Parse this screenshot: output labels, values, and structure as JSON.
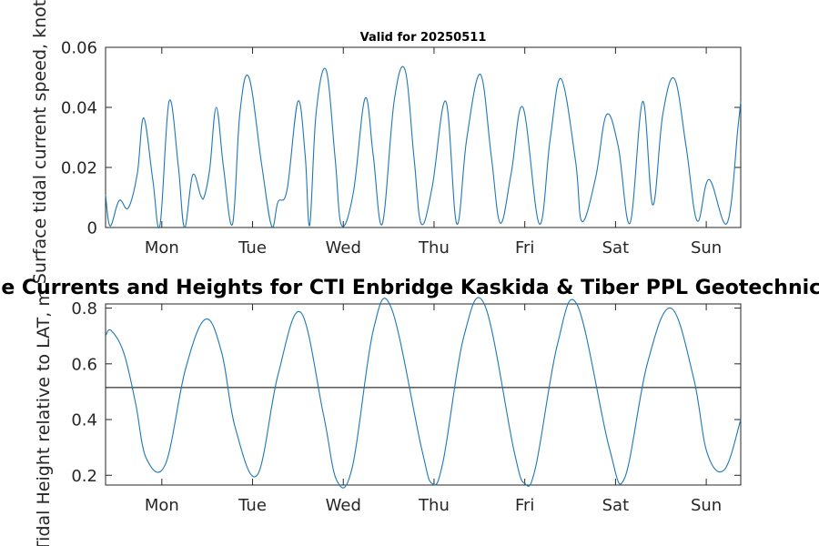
{
  "figure": {
    "top_title": "Valid for 20250511",
    "main_title": "Surface Currents and Heights for CTI Enbridge  Kaskida & Tiber PPL Geotechnical and"
  },
  "chart_data": [
    {
      "type": "line",
      "title": "Valid for 20250511",
      "ylabel": "Surface tidal current speed, knots",
      "xlabel": "",
      "x_unit": "days",
      "xlim": [
        0,
        7
      ],
      "ylim": [
        0,
        0.06
      ],
      "yticks": [
        0,
        0.02,
        0.04,
        0.06
      ],
      "ytick_labels": [
        "0",
        "0.02",
        "0.04",
        "0.06"
      ],
      "xticks": [
        0.62,
        1.62,
        2.62,
        3.62,
        4.62,
        5.62,
        6.62
      ],
      "xtick_labels": [
        "Mon",
        "Tue",
        "Wed",
        "Thu",
        "Fri",
        "Sat",
        "Sun"
      ],
      "grid": false,
      "color": "#1f77b4",
      "series": [
        {
          "x": [
            0,
            0.05,
            0.15,
            0.25,
            0.35,
            0.42,
            0.52,
            0.6,
            0.7,
            0.8,
            0.87,
            0.96,
            1.05,
            1.09,
            1.15,
            1.22,
            1.3,
            1.4,
            1.48,
            1.58,
            1.72,
            1.83,
            1.9,
            2.0,
            2.12,
            2.2,
            2.25,
            2.32,
            2.43,
            2.53,
            2.6,
            2.73,
            2.86,
            2.95,
            3.05,
            3.18,
            3.3,
            3.4,
            3.48,
            3.6,
            3.75,
            3.87,
            3.98,
            4.13,
            4.25,
            4.35,
            4.47,
            4.6,
            4.78,
            4.9,
            5.02,
            5.18,
            5.25,
            5.4,
            5.52,
            5.65,
            5.78,
            5.92,
            6.03,
            6.14,
            6.27,
            6.4,
            6.52,
            6.65,
            6.85,
            6.97,
            7.0
          ],
          "y": [
            0.011,
            0.0005,
            0.009,
            0.0065,
            0.018,
            0.0365,
            0.016,
            0.0008,
            0.042,
            0.021,
            0.0,
            0.0175,
            0.0105,
            0.0105,
            0.02,
            0.04,
            0.02,
            0.0012,
            0.038,
            0.05,
            0.021,
            0.0005,
            0.0085,
            0.0125,
            0.042,
            0.024,
            0.0008,
            0.038,
            0.0525,
            0.023,
            0.0008,
            0.0115,
            0.043,
            0.024,
            0.0012,
            0.042,
            0.0525,
            0.023,
            0.0012,
            0.0135,
            0.042,
            0.0012,
            0.0295,
            0.051,
            0.024,
            0.0015,
            0.018,
            0.04,
            0.0012,
            0.0295,
            0.0495,
            0.022,
            0.002,
            0.0165,
            0.0375,
            0.027,
            0.0015,
            0.042,
            0.0075,
            0.0375,
            0.0495,
            0.0265,
            0.0022,
            0.016,
            0.0015,
            0.0335,
            0.042
          ]
        }
      ]
    },
    {
      "type": "line",
      "title": "Surface Currents and Heights for CTI Enbridge  Kaskida & Tiber PPL Geotechnical and",
      "ylabel": "Tidal Height relative to LAT, m",
      "xlabel": "",
      "x_unit": "days",
      "xlim": [
        0,
        7
      ],
      "ylim": [
        0.165,
        0.815
      ],
      "yticks": [
        0.2,
        0.4,
        0.6,
        0.8
      ],
      "ytick_labels": [
        "0.2",
        "0.4",
        "0.6",
        "0.8"
      ],
      "xticks": [
        0.62,
        1.62,
        2.62,
        3.62,
        4.62,
        5.62,
        6.62
      ],
      "xtick_labels": [
        "Mon",
        "Tue",
        "Wed",
        "Thu",
        "Fri",
        "Sat",
        "Sun"
      ],
      "grid": false,
      "color": "#1f77b4",
      "reference_line": 0.515,
      "series": [
        {
          "x": [
            0,
            0.06,
            0.2,
            0.33,
            0.45,
            0.66,
            0.88,
            1.1,
            1.28,
            1.43,
            1.67,
            1.9,
            2.15,
            2.4,
            2.55,
            2.72,
            2.95,
            3.15,
            3.48,
            3.6,
            3.72,
            3.95,
            4.18,
            4.5,
            4.62,
            4.74,
            4.98,
            5.2,
            5.55,
            5.72,
            5.97,
            6.23,
            6.48,
            6.63,
            6.82,
            7.0
          ],
          "y": [
            0.7,
            0.72,
            0.64,
            0.46,
            0.26,
            0.24,
            0.58,
            0.76,
            0.64,
            0.37,
            0.2,
            0.56,
            0.785,
            0.42,
            0.18,
            0.23,
            0.72,
            0.8,
            0.3,
            0.17,
            0.25,
            0.7,
            0.81,
            0.29,
            0.17,
            0.23,
            0.67,
            0.81,
            0.3,
            0.19,
            0.6,
            0.8,
            0.55,
            0.28,
            0.22,
            0.4
          ]
        }
      ]
    }
  ]
}
